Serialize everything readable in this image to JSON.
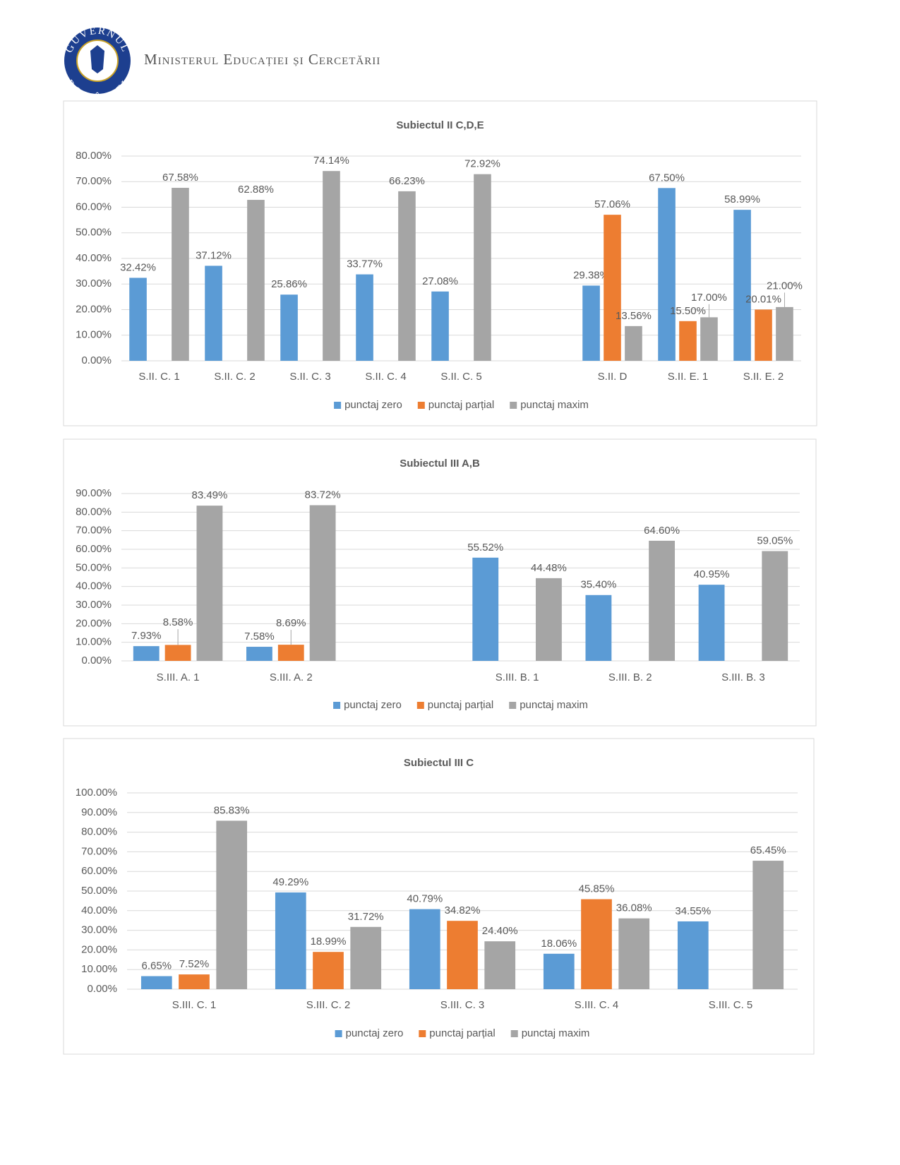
{
  "header": {
    "ministry": "Ministerul Educației și Cercetării",
    "logo_top": "GUVERNUL",
    "logo_bottom": "ROMÂNIEI"
  },
  "chart_data": [
    {
      "type": "bar",
      "title": "Subiectul II C,D,E",
      "categories": [
        "S.II. C. 1",
        "S.II. C. 2",
        "S.II. C. 3",
        "S.II. C. 4",
        "S.II. C. 5",
        null,
        "S.II. D",
        "S.II. E. 1",
        "S.II. E. 2"
      ],
      "series": [
        {
          "name": "punctaj zero",
          "color": "#5b9bd5",
          "values": [
            32.42,
            37.12,
            25.86,
            33.77,
            27.08,
            null,
            29.38,
            67.5,
            58.99
          ],
          "value_labels": [
            "32.42%",
            "37.12%",
            "25.86%",
            "33.77%",
            "27.08%",
            null,
            "29.38%",
            "67.50%",
            "58.99%"
          ]
        },
        {
          "name": "punctaj parțial",
          "color": "#ed7d31",
          "values": [
            null,
            null,
            null,
            null,
            null,
            null,
            57.06,
            15.5,
            20.01
          ],
          "value_labels": [
            null,
            null,
            null,
            null,
            null,
            null,
            "57.06%",
            "15.50%",
            "20.01%"
          ]
        },
        {
          "name": "punctaj maxim",
          "color": "#a5a5a5",
          "values": [
            67.58,
            62.88,
            74.14,
            66.23,
            72.92,
            null,
            13.56,
            17,
            21
          ],
          "value_labels": [
            "67.58%",
            "62.88%",
            "74.14%",
            "66.23%",
            "72.92%",
            null,
            "13.56%",
            "17.00%",
            "21.00%"
          ]
        }
      ],
      "ylim": [
        0,
        80
      ],
      "yticks": [
        {
          "value": 0,
          "label": "0.00%"
        },
        {
          "value": 10,
          "label": "10.00%"
        },
        {
          "value": 20,
          "label": "20.00%"
        },
        {
          "value": 30,
          "label": "30.00%"
        },
        {
          "value": 40,
          "label": "40.00%"
        },
        {
          "value": 50,
          "label": "50.00%"
        },
        {
          "value": 60,
          "label": "60.00%"
        },
        {
          "value": 70,
          "label": "70.00%"
        },
        {
          "value": 80,
          "label": "80.00%"
        }
      ],
      "grid": true,
      "legend": "bottom"
    },
    {
      "type": "bar",
      "title": "Subiectul III A,B",
      "categories": [
        "S.III. A. 1",
        "S.III. A. 2",
        null,
        "S.III. B. 1",
        "S.III. B. 2",
        "S.III. B. 3"
      ],
      "series": [
        {
          "name": "punctaj zero",
          "color": "#5b9bd5",
          "values": [
            7.93,
            7.58,
            null,
            55.52,
            35.4,
            40.95
          ],
          "value_labels": [
            "7.93%",
            "7.58%",
            null,
            "55.52%",
            "35.40%",
            "40.95%"
          ]
        },
        {
          "name": "punctaj parțial",
          "color": "#ed7d31",
          "values": [
            8.58,
            8.69,
            null,
            null,
            null,
            null
          ],
          "value_labels": [
            "8.58%",
            "8.69%",
            null,
            null,
            null,
            null
          ]
        },
        {
          "name": "punctaj maxim",
          "color": "#a5a5a5",
          "values": [
            83.49,
            83.72,
            null,
            44.48,
            64.6,
            59.05
          ],
          "value_labels": [
            "83.49%",
            "83.72%",
            null,
            "44.48%",
            "64.60%",
            "59.05%"
          ]
        }
      ],
      "ylim": [
        0,
        90
      ],
      "yticks": [
        {
          "value": 0,
          "label": "0.00%"
        },
        {
          "value": 10,
          "label": "10.00%"
        },
        {
          "value": 20,
          "label": "20.00%"
        },
        {
          "value": 30,
          "label": "30.00%"
        },
        {
          "value": 40,
          "label": "40.00%"
        },
        {
          "value": 50,
          "label": "50.00%"
        },
        {
          "value": 60,
          "label": "60.00%"
        },
        {
          "value": 70,
          "label": "70.00%"
        },
        {
          "value": 80,
          "label": "80.00%"
        },
        {
          "value": 90,
          "label": "90.00%"
        }
      ],
      "grid": true,
      "legend": "bottom"
    },
    {
      "type": "bar",
      "title": "Subiectul III C",
      "categories": [
        "S.III. C. 1",
        "S.III. C. 2",
        "S.III. C. 3",
        "S.III. C. 4",
        "S.III. C. 5"
      ],
      "series": [
        {
          "name": "punctaj zero",
          "color": "#5b9bd5",
          "values": [
            6.65,
            49.29,
            40.79,
            18.06,
            34.55
          ],
          "value_labels": [
            "6.65%",
            "49.29%",
            "40.79%",
            "18.06%",
            "34.55%"
          ]
        },
        {
          "name": "punctaj parțial",
          "color": "#ed7d31",
          "values": [
            7.52,
            18.99,
            34.82,
            45.85,
            null
          ],
          "value_labels": [
            "7.52%",
            "18.99%",
            "34.82%",
            "45.85%",
            null
          ]
        },
        {
          "name": "punctaj maxim",
          "color": "#a5a5a5",
          "values": [
            85.83,
            31.72,
            24.4,
            36.08,
            65.45
          ],
          "value_labels": [
            "85.83%",
            "31.72%",
            "24.40%",
            "36.08%",
            "65.45%"
          ]
        }
      ],
      "ylim": [
        0,
        100
      ],
      "yticks": [
        {
          "value": 0,
          "label": "0.00%"
        },
        {
          "value": 10,
          "label": "10.00%"
        },
        {
          "value": 20,
          "label": "20.00%"
        },
        {
          "value": 30,
          "label": "30.00%"
        },
        {
          "value": 40,
          "label": "40.00%"
        },
        {
          "value": 50,
          "label": "50.00%"
        },
        {
          "value": 60,
          "label": "60.00%"
        },
        {
          "value": 70,
          "label": "70.00%"
        },
        {
          "value": 80,
          "label": "80.00%"
        },
        {
          "value": 90,
          "label": "90.00%"
        },
        {
          "value": 100,
          "label": "100.00%"
        }
      ],
      "grid": true,
      "legend": "bottom"
    }
  ]
}
